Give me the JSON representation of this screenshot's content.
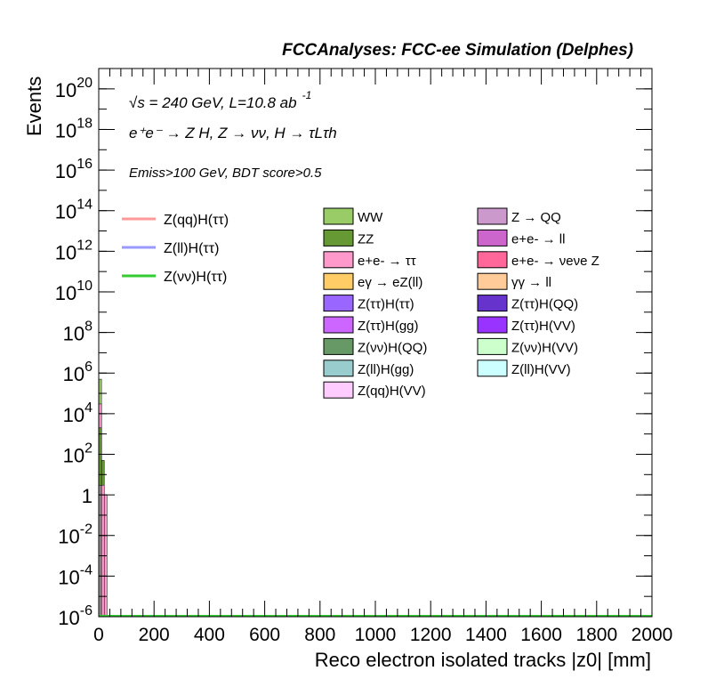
{
  "header": "FCCAnalyses: FCC-ee Simulation (Delphes)",
  "chart_data": {
    "type": "bar",
    "stacked": true,
    "x_scale": "linear",
    "y_scale": "log",
    "xlim": [
      0,
      2000
    ],
    "ylim": [
      1e-06,
      1e+21
    ],
    "xlabel": "Reco electron isolated tracks |z0| [mm]",
    "ylabel": "Events",
    "x_ticks": [
      "0",
      "200",
      "400",
      "600",
      "800",
      "1000",
      "1200",
      "1400",
      "1600",
      "1800",
      "2000"
    ],
    "y_ticks": [
      {
        "base": "10",
        "exp": "-6",
        "v": 1e-06
      },
      {
        "base": "10",
        "exp": "-4",
        "v": 0.0001
      },
      {
        "base": "10",
        "exp": "-2",
        "v": 0.01
      },
      {
        "base": "1",
        "exp": "",
        "v": 1
      },
      {
        "base": "10",
        "exp": "2",
        "v": 100.0
      },
      {
        "base": "10",
        "exp": "4",
        "v": 10000.0
      },
      {
        "base": "10",
        "exp": "6",
        "v": 1000000.0
      },
      {
        "base": "10",
        "exp": "8",
        "v": 100000000.0
      },
      {
        "base": "10",
        "exp": "10",
        "v": 10000000000.0
      },
      {
        "base": "10",
        "exp": "12",
        "v": 1000000000000.0
      },
      {
        "base": "10",
        "exp": "14",
        "v": 100000000000000.0
      },
      {
        "base": "10",
        "exp": "16",
        "v": 1e+16
      },
      {
        "base": "10",
        "exp": "18",
        "v": 1e+18
      },
      {
        "base": "10",
        "exp": "20",
        "v": 1e+20
      }
    ],
    "annotations": {
      "energy": "√s = 240 GeV, L=10.8 ab",
      "energy_exp": "-1",
      "process": "e⁺e⁻ → Z H, Z → νν, H → τLτh",
      "selection": "Emiss>100 GeV, BDT score>0.5"
    },
    "grid": false,
    "legend_position": "top",
    "bin_width": 10,
    "bins": [
      {
        "x0": 0,
        "x1": 10,
        "stack": [
          {
            "name": "WW",
            "top": 500000
          },
          {
            "name": "e+e- → ττ",
            "top": 30000
          },
          {
            "name": "ZZ",
            "top": 2000
          },
          {
            "name": "Z(νν)H(ττ)",
            "top": 3
          }
        ]
      },
      {
        "x0": 10,
        "x1": 20,
        "stack": [
          {
            "name": "ZZ",
            "top": 50
          },
          {
            "name": "e+e- → ττ",
            "top": 3
          }
        ]
      },
      {
        "x0": 20,
        "x1": 30,
        "stack": [
          {
            "name": "e+e- → ττ",
            "top": 1
          }
        ]
      }
    ],
    "signal_lines": [
      {
        "name": "Z(qq)H(ττ)",
        "color": "#ff9999"
      },
      {
        "name": "Z(ll)H(ττ)",
        "color": "#9999ff"
      },
      {
        "name": "Z(νν)H(ττ)",
        "color": "#33cc33"
      }
    ],
    "backgrounds": [
      {
        "name": "WW",
        "color": "#99cc66"
      },
      {
        "name": "Z → QQ",
        "color": "#cc99cc"
      },
      {
        "name": "ZZ",
        "color": "#669933"
      },
      {
        "name": "e+e- → ll",
        "color": "#cc66cc"
      },
      {
        "name": "e+e- → ττ",
        "color": "#ff99cc"
      },
      {
        "name": "e+e- → νeνe Z",
        "color": "#ff6699"
      },
      {
        "name": "eγ → eZ(ll)",
        "color": "#ffcc66"
      },
      {
        "name": "γγ → ll",
        "color": "#ffcc99"
      },
      {
        "name": "Z(ττ)H(ττ)",
        "color": "#9966ff"
      },
      {
        "name": "Z(ττ)H(QQ)",
        "color": "#6633cc"
      },
      {
        "name": "Z(ττ)H(gg)",
        "color": "#cc66ff"
      },
      {
        "name": "Z(ττ)H(VV)",
        "color": "#9933ff"
      },
      {
        "name": "Z(νν)H(QQ)",
        "color": "#669966"
      },
      {
        "name": "Z(νν)H(VV)",
        "color": "#ccffcc"
      },
      {
        "name": "Z(ll)H(gg)",
        "color": "#99cccc"
      },
      {
        "name": "Z(ll)H(VV)",
        "color": "#ccffff"
      },
      {
        "name": "Z(qq)H(VV)",
        "color": "#ffccff"
      }
    ]
  }
}
